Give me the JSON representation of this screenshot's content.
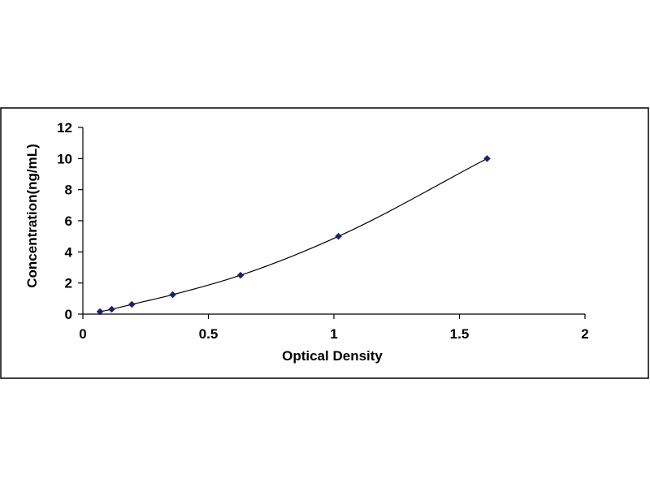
{
  "chart_data": {
    "type": "scatter",
    "title": "",
    "xlabel": "Optical Density",
    "ylabel": "Concentration(ng/mL)",
    "xlim": [
      0,
      2
    ],
    "ylim": [
      0,
      12
    ],
    "x_ticks": [
      0,
      0.5,
      1,
      1.5,
      2
    ],
    "x_tick_labels": [
      "0",
      "0.5",
      "1",
      "1.5",
      "2"
    ],
    "y_ticks": [
      0,
      2,
      4,
      6,
      8,
      10,
      12
    ],
    "y_tick_labels": [
      "0",
      "2",
      "4",
      "6",
      "8",
      "10",
      "12"
    ],
    "grid": false,
    "legend": "none",
    "series": [
      {
        "x": [
          0.068,
          0.115,
          0.195,
          0.358,
          0.628,
          1.018,
          1.61
        ],
        "y": [
          0.156,
          0.312,
          0.625,
          1.25,
          2.5,
          5,
          10
        ],
        "marker": "diamond",
        "color": "#1a1f6e",
        "fitted_curve": true
      }
    ],
    "colors": {
      "frame": "#000000",
      "curve": "#000000",
      "marker": "#1a1f6e",
      "background": "#ffffff"
    }
  }
}
